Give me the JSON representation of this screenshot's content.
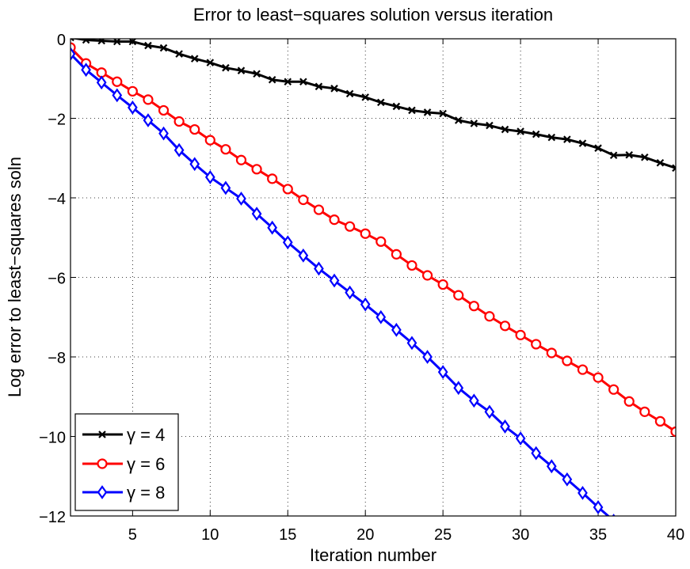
{
  "chart_data": {
    "type": "line",
    "title": "Error to least−squares solution versus iteration",
    "xlabel": "Iteration number",
    "ylabel": "Log error to least−squares soln",
    "xlim": [
      1,
      40
    ],
    "ylim": [
      -12,
      0
    ],
    "xticks": [
      5,
      10,
      15,
      20,
      25,
      30,
      35,
      40
    ],
    "yticks": [
      0,
      -2,
      -4,
      -6,
      -8,
      -10,
      -12
    ],
    "xtick_labels": [
      "5",
      "10",
      "15",
      "20",
      "25",
      "30",
      "35",
      "40"
    ],
    "ytick_labels": [
      "0",
      "−2",
      "−4",
      "−6",
      "−8",
      "−10",
      "−12"
    ],
    "grid": true,
    "legend_position": "bottom-left",
    "series": [
      {
        "name": "γ = 4",
        "color": "#000000",
        "marker": "x",
        "x": [
          1,
          2,
          3,
          4,
          5,
          6,
          7,
          8,
          9,
          10,
          11,
          12,
          13,
          14,
          15,
          16,
          17,
          18,
          19,
          20,
          21,
          22,
          23,
          24,
          25,
          26,
          27,
          28,
          29,
          30,
          31,
          32,
          33,
          34,
          35,
          36,
          37,
          38,
          39,
          40
        ],
        "values": [
          0.03,
          -0.03,
          -0.05,
          -0.07,
          -0.07,
          -0.17,
          -0.23,
          -0.38,
          -0.5,
          -0.6,
          -0.73,
          -0.8,
          -0.88,
          -1.03,
          -1.08,
          -1.08,
          -1.2,
          -1.25,
          -1.38,
          -1.47,
          -1.6,
          -1.7,
          -1.8,
          -1.85,
          -1.88,
          -2.05,
          -2.13,
          -2.18,
          -2.28,
          -2.33,
          -2.4,
          -2.48,
          -2.53,
          -2.63,
          -2.75,
          -2.93,
          -2.92,
          -2.98,
          -3.12,
          -3.25
        ]
      },
      {
        "name": "γ = 6",
        "color": "#ff0000",
        "marker": "o",
        "x": [
          1,
          2,
          3,
          4,
          5,
          6,
          7,
          8,
          9,
          10,
          11,
          12,
          13,
          14,
          15,
          16,
          17,
          18,
          19,
          20,
          21,
          22,
          23,
          24,
          25,
          26,
          27,
          28,
          29,
          30,
          31,
          32,
          33,
          34,
          35,
          36,
          37,
          38,
          39,
          40
        ],
        "values": [
          -0.22,
          -0.62,
          -0.85,
          -1.08,
          -1.32,
          -1.53,
          -1.8,
          -2.08,
          -2.28,
          -2.55,
          -2.78,
          -3.05,
          -3.28,
          -3.52,
          -3.78,
          -4.05,
          -4.3,
          -4.55,
          -4.72,
          -4.9,
          -5.1,
          -5.42,
          -5.7,
          -5.95,
          -6.18,
          -6.45,
          -6.72,
          -6.98,
          -7.22,
          -7.45,
          -7.68,
          -7.9,
          -8.1,
          -8.32,
          -8.52,
          -8.82,
          -9.12,
          -9.38,
          -9.62,
          -9.88
        ]
      },
      {
        "name": "γ = 8",
        "color": "#0000ff",
        "marker": "d",
        "x": [
          1,
          2,
          3,
          4,
          5,
          6,
          7,
          8,
          9,
          10,
          11,
          12,
          13,
          14,
          15,
          16,
          17,
          18,
          19,
          20,
          21,
          22,
          23,
          24,
          25,
          26,
          27,
          28,
          29,
          30,
          31,
          32,
          33,
          34,
          35,
          36
        ],
        "values": [
          -0.38,
          -0.78,
          -1.1,
          -1.42,
          -1.73,
          -2.05,
          -2.38,
          -2.8,
          -3.15,
          -3.48,
          -3.75,
          -4.02,
          -4.4,
          -4.75,
          -5.12,
          -5.45,
          -5.78,
          -6.08,
          -6.38,
          -6.68,
          -7.0,
          -7.32,
          -7.65,
          -8.0,
          -8.38,
          -8.78,
          -9.1,
          -9.38,
          -9.75,
          -10.05,
          -10.42,
          -10.75,
          -11.08,
          -11.42,
          -11.78,
          -12.12
        ]
      }
    ]
  }
}
